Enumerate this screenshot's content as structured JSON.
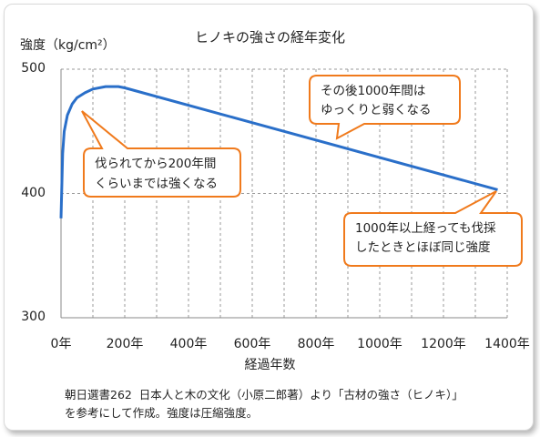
{
  "chart_data": {
    "type": "line",
    "title": "ヒノキの強さの経年変化",
    "ylabel": "強度（kg/cm²）",
    "xlabel": "経過年数",
    "xlim": [
      0,
      1400
    ],
    "ylim": [
      300,
      500
    ],
    "y_ticks": [
      "500",
      "400",
      "300"
    ],
    "x_ticks": [
      "0年",
      "200年",
      "400年",
      "600年",
      "800年",
      "1000年",
      "1200年",
      "1400年"
    ],
    "grid": "vertical dashed every 100 years; horizontal dashed at 400 and 500",
    "series": [
      {
        "color": "#2a6fc9",
        "x": [
          0,
          5,
          10,
          20,
          35,
          50,
          75,
          100,
          140,
          180,
          200,
          1370
        ],
        "y": [
          380,
          432,
          450,
          463,
          472,
          477,
          481,
          484,
          486,
          486,
          485,
          403
        ]
      }
    ],
    "annotations": [
      {
        "lines": [
          "伐られてから200年間",
          "くらいまでは強くなる"
        ]
      },
      {
        "lines": [
          "その後1000年間は",
          "ゆっくりと弱くなる"
        ]
      },
      {
        "lines": [
          "1000年以上経っても伐採",
          "したときとほぼ同じ強度"
        ]
      }
    ],
    "callout_color": "#f07a1c"
  },
  "note": {
    "line1": "朝日選書262  日本人と木の文化（小原二郎著）より「古材の強さ（ヒノキ）」",
    "line2": "を参考にして作成。強度は圧縮強度。"
  }
}
